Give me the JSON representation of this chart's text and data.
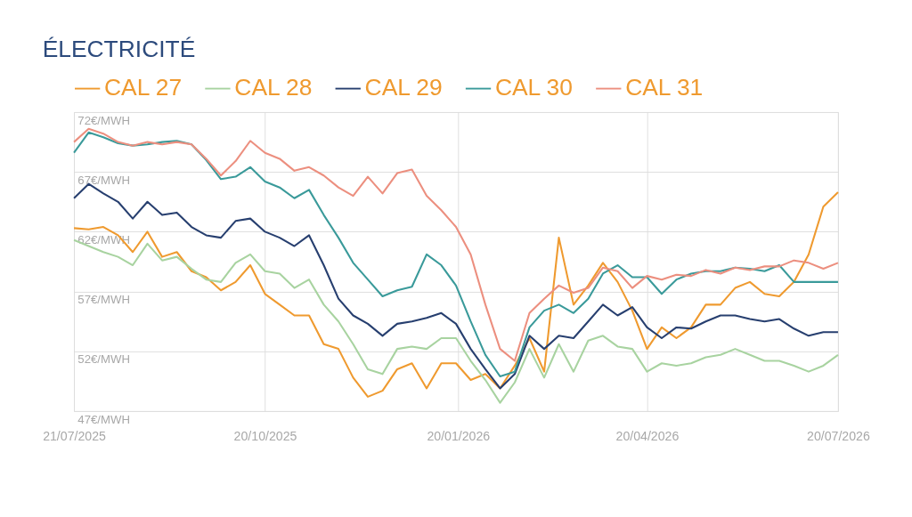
{
  "chart_data": {
    "type": "line",
    "title": "ÉLECTRICITÉ",
    "x": [
      "2025-07-21",
      "2025-07-28",
      "2025-08-04",
      "2025-08-11",
      "2025-08-18",
      "2025-08-25",
      "2025-09-01",
      "2025-09-08",
      "2025-09-15",
      "2025-09-22",
      "2025-09-29",
      "2025-10-06",
      "2025-10-13",
      "2025-10-20",
      "2025-10-27",
      "2025-11-03",
      "2025-11-10",
      "2025-11-17",
      "2025-11-24",
      "2025-12-01",
      "2025-12-08",
      "2025-12-15",
      "2025-12-22",
      "2025-12-29",
      "2026-01-05",
      "2026-01-12",
      "2026-01-19",
      "2026-01-26",
      "2026-02-02",
      "2026-02-09",
      "2026-02-16",
      "2026-02-23",
      "2026-03-02",
      "2026-03-09",
      "2026-03-16",
      "2026-03-23",
      "2026-03-30",
      "2026-04-06",
      "2026-04-13",
      "2026-04-20",
      "2026-04-27",
      "2026-05-04",
      "2026-05-11",
      "2026-05-18",
      "2026-05-25",
      "2026-06-01",
      "2026-06-08",
      "2026-06-15",
      "2026-06-22",
      "2026-06-29",
      "2026-07-06",
      "2026-07-13",
      "2026-07-20"
    ],
    "series": [
      {
        "name": "CAL 27",
        "color": "#ef9a2f",
        "values": [
          62.3,
          62.2,
          62.4,
          61.7,
          60.3,
          62.0,
          59.9,
          60.3,
          58.7,
          58.2,
          57.1,
          57.8,
          59.2,
          56.8,
          55.9,
          55.0,
          55.0,
          52.6,
          52.2,
          49.8,
          48.2,
          48.7,
          50.5,
          51.0,
          48.9,
          51.0,
          51.0,
          49.6,
          50.1,
          48.9,
          50.8,
          53.1,
          50.3,
          61.5,
          55.9,
          57.5,
          59.4,
          57.8,
          55.4,
          52.2,
          54.0,
          53.1,
          54.0,
          55.9,
          55.9,
          57.3,
          57.8,
          56.8,
          56.6,
          57.8,
          60.1,
          64.1,
          65.3
        ]
      },
      {
        "name": "CAL 28",
        "color": "#a8d3a0",
        "values": [
          61.3,
          60.8,
          60.3,
          59.9,
          59.2,
          61.0,
          59.6,
          59.9,
          58.9,
          58.0,
          57.8,
          59.4,
          60.1,
          58.7,
          58.5,
          57.3,
          58.0,
          55.9,
          54.5,
          52.6,
          50.5,
          50.1,
          52.2,
          52.4,
          52.2,
          53.1,
          53.1,
          51.2,
          49.6,
          47.7,
          49.4,
          52.2,
          49.8,
          52.6,
          50.3,
          52.9,
          53.3,
          52.4,
          52.2,
          50.3,
          51.0,
          50.8,
          51.0,
          51.5,
          51.7,
          52.2,
          51.7,
          51.2,
          51.2,
          50.8,
          50.3,
          50.8,
          51.7
        ]
      },
      {
        "name": "CAL 29",
        "color": "#273f6f",
        "values": [
          64.8,
          66.0,
          65.2,
          64.5,
          63.1,
          64.5,
          63.4,
          63.6,
          62.4,
          61.7,
          61.5,
          62.9,
          63.1,
          62.0,
          61.5,
          60.8,
          61.7,
          59.2,
          56.4,
          55.0,
          54.3,
          53.3,
          54.3,
          54.5,
          54.8,
          55.2,
          54.3,
          52.2,
          50.5,
          48.9,
          50.1,
          53.3,
          52.2,
          53.3,
          53.1,
          54.5,
          55.9,
          55.0,
          55.7,
          54.0,
          53.1,
          54.0,
          53.9,
          54.5,
          55.0,
          55.0,
          54.7,
          54.5,
          54.7,
          53.9,
          53.3,
          53.6,
          53.6
        ]
      },
      {
        "name": "CAL 30",
        "color": "#3a9a9a",
        "values": [
          68.6,
          70.3,
          69.9,
          69.4,
          69.2,
          69.3,
          69.5,
          69.6,
          69.3,
          68.0,
          66.4,
          66.6,
          67.4,
          66.2,
          65.7,
          64.8,
          65.5,
          63.4,
          61.5,
          59.4,
          58.0,
          56.6,
          57.1,
          57.4,
          60.1,
          59.2,
          57.5,
          54.5,
          51.7,
          49.9,
          50.3,
          54.0,
          55.4,
          55.9,
          55.2,
          56.4,
          58.5,
          59.2,
          58.2,
          58.2,
          56.8,
          58.0,
          58.5,
          58.7,
          58.7,
          59.0,
          58.9,
          58.7,
          59.2,
          57.8,
          57.8,
          57.8,
          57.8
        ]
      },
      {
        "name": "CAL 31",
        "color": "#ec8f7f",
        "values": [
          69.5,
          70.6,
          70.2,
          69.5,
          69.2,
          69.5,
          69.3,
          69.5,
          69.3,
          68.1,
          66.7,
          67.9,
          69.6,
          68.6,
          68.1,
          67.1,
          67.4,
          66.7,
          65.7,
          65.0,
          66.6,
          65.2,
          66.9,
          67.2,
          65.0,
          63.8,
          62.4,
          60.1,
          55.9,
          52.2,
          51.2,
          55.2,
          56.4,
          57.5,
          56.9,
          57.3,
          59.0,
          58.7,
          57.3,
          58.3,
          58.0,
          58.4,
          58.3,
          58.8,
          58.5,
          59.0,
          58.8,
          59.1,
          59.1,
          59.6,
          59.4,
          58.9,
          59.4
        ]
      }
    ],
    "ylim": [
      47,
      72
    ],
    "yticks": [
      {
        "value": 47,
        "label": "47€/MWH"
      },
      {
        "value": 52,
        "label": "52€/MWH"
      },
      {
        "value": 57,
        "label": "57€/MWH"
      },
      {
        "value": 62,
        "label": "62€/MWH"
      },
      {
        "value": 67,
        "label": "67€/MWH"
      },
      {
        "value": 72,
        "label": "72€/MWH"
      }
    ],
    "xlim": [
      "2025-07-21",
      "2026-07-20"
    ],
    "xticks": [
      {
        "value": "2025-07-21",
        "label": "21/07/2025"
      },
      {
        "value": "2025-10-20",
        "label": "20/10/2025"
      },
      {
        "value": "2026-01-20",
        "label": "20/01/2026"
      },
      {
        "value": "2026-04-20",
        "label": "20/04/2026"
      },
      {
        "value": "2026-07-20",
        "label": "20/07/2026"
      }
    ],
    "grid": true,
    "legend": "top",
    "line_style": "solid",
    "marker": "none"
  }
}
